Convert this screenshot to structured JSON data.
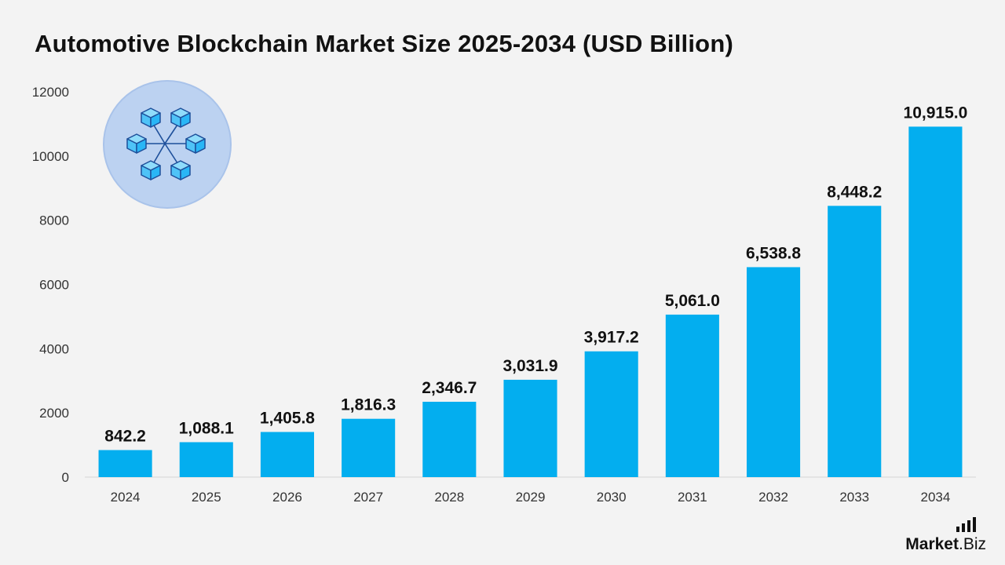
{
  "title": "Automotive Blockchain Market Size 2025-2034 (USD Billion)",
  "brand": {
    "name_bold": "Market",
    "name_rest": ".Biz"
  },
  "icon": "blockchain-network-icon",
  "colors": {
    "bar": "#03aeef",
    "background": "#f3f3f3",
    "icon_circle": "#bcd2f1",
    "icon_cube": "#4fc3f7"
  },
  "chart_data": {
    "type": "bar",
    "categories": [
      "2024",
      "2025",
      "2026",
      "2027",
      "2028",
      "2029",
      "2030",
      "2031",
      "2032",
      "2033",
      "2034"
    ],
    "values": [
      842.2,
      1088.1,
      1405.8,
      1816.3,
      2346.7,
      3031.9,
      3917.2,
      5061.0,
      6538.8,
      8448.2,
      10915.0
    ],
    "data_labels": [
      "842.2",
      "1,088.1",
      "1,405.8",
      "1,816.3",
      "2,346.7",
      "3,031.9",
      "3,917.2",
      "5,061.0",
      "6,538.8",
      "8,448.2",
      "10,915.0"
    ],
    "yticks": [
      0,
      2000,
      4000,
      6000,
      8000,
      10000,
      12000
    ],
    "ylim": [
      0,
      12000
    ],
    "grid": false,
    "legend": "none",
    "xlabel": "",
    "ylabel": ""
  }
}
